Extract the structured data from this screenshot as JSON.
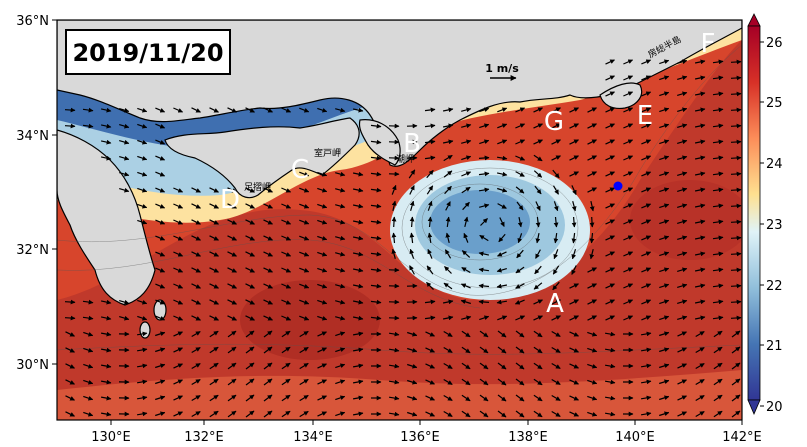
{
  "date_label": "2019/11/20",
  "scale_label": "1 m/s",
  "x_ticks": [
    "130°E",
    "132°E",
    "134°E",
    "136°E",
    "138°E",
    "140°E",
    "142°E"
  ],
  "y_ticks": [
    "30°N",
    "32°N",
    "34°N",
    "36°N"
  ],
  "colorbar_ticks": [
    "20",
    "21",
    "22",
    "23",
    "24",
    "25",
    "26"
  ],
  "letters": [
    "A",
    "B",
    "C",
    "D",
    "E",
    "F",
    "G"
  ],
  "place_labels": {
    "muroto": "室戸岬",
    "shiono": "潮岬",
    "ashizuri": "足摺岬",
    "boso": "房総半島"
  },
  "colors": {
    "land": "#d9d9d9",
    "marker": "#0000ff",
    "warm": "#c0392b",
    "cold": "#2c4f9e"
  }
}
